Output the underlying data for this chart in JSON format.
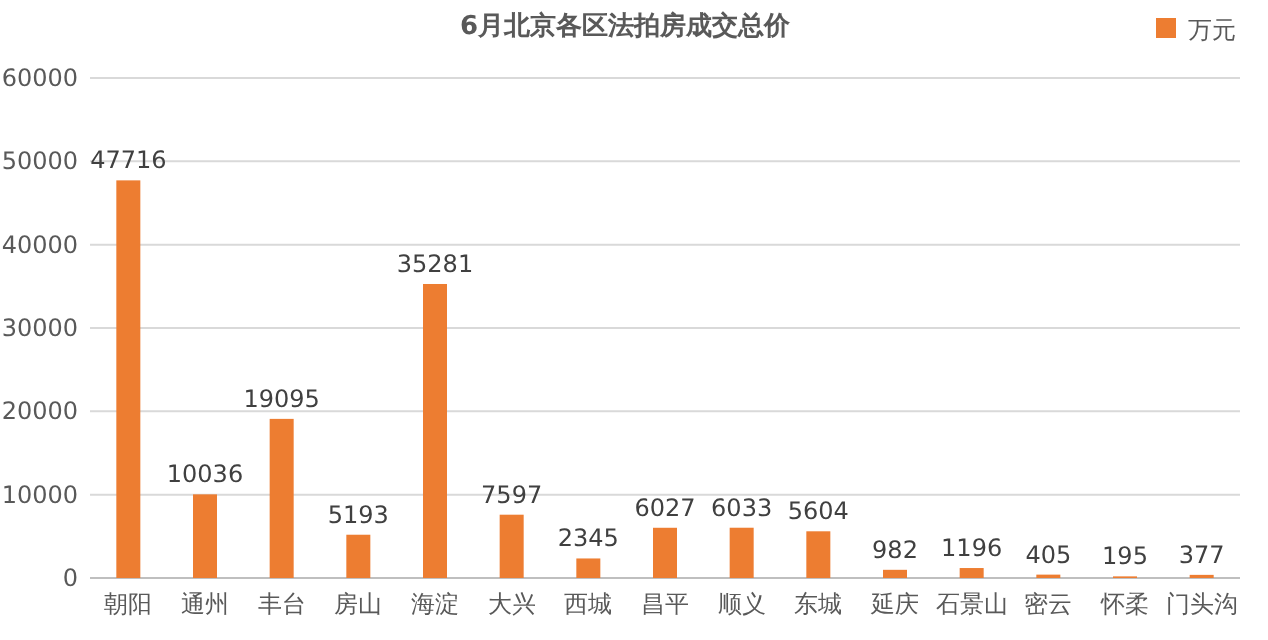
{
  "chart_data": {
    "type": "bar",
    "title": "6月北京各区法拍房成交总价",
    "categories": [
      "朝阳",
      "通州",
      "丰台",
      "房山",
      "海淀",
      "大兴",
      "西城",
      "昌平",
      "顺义",
      "东城",
      "延庆",
      "石景山",
      "密云",
      "怀柔",
      "门头沟"
    ],
    "series": [
      {
        "name": "万元",
        "color": "#ed7d31",
        "values": [
          47716,
          10036,
          19095,
          5193,
          35281,
          7597,
          2345,
          6027,
          6033,
          5604,
          982,
          1196,
          405,
          195,
          377
        ]
      }
    ],
    "ylim": [
      0,
      60000
    ],
    "yticks": [
      0,
      10000,
      20000,
      30000,
      40000,
      50000,
      60000
    ],
    "grid": "y",
    "legend": "top right",
    "data_labels": true
  }
}
